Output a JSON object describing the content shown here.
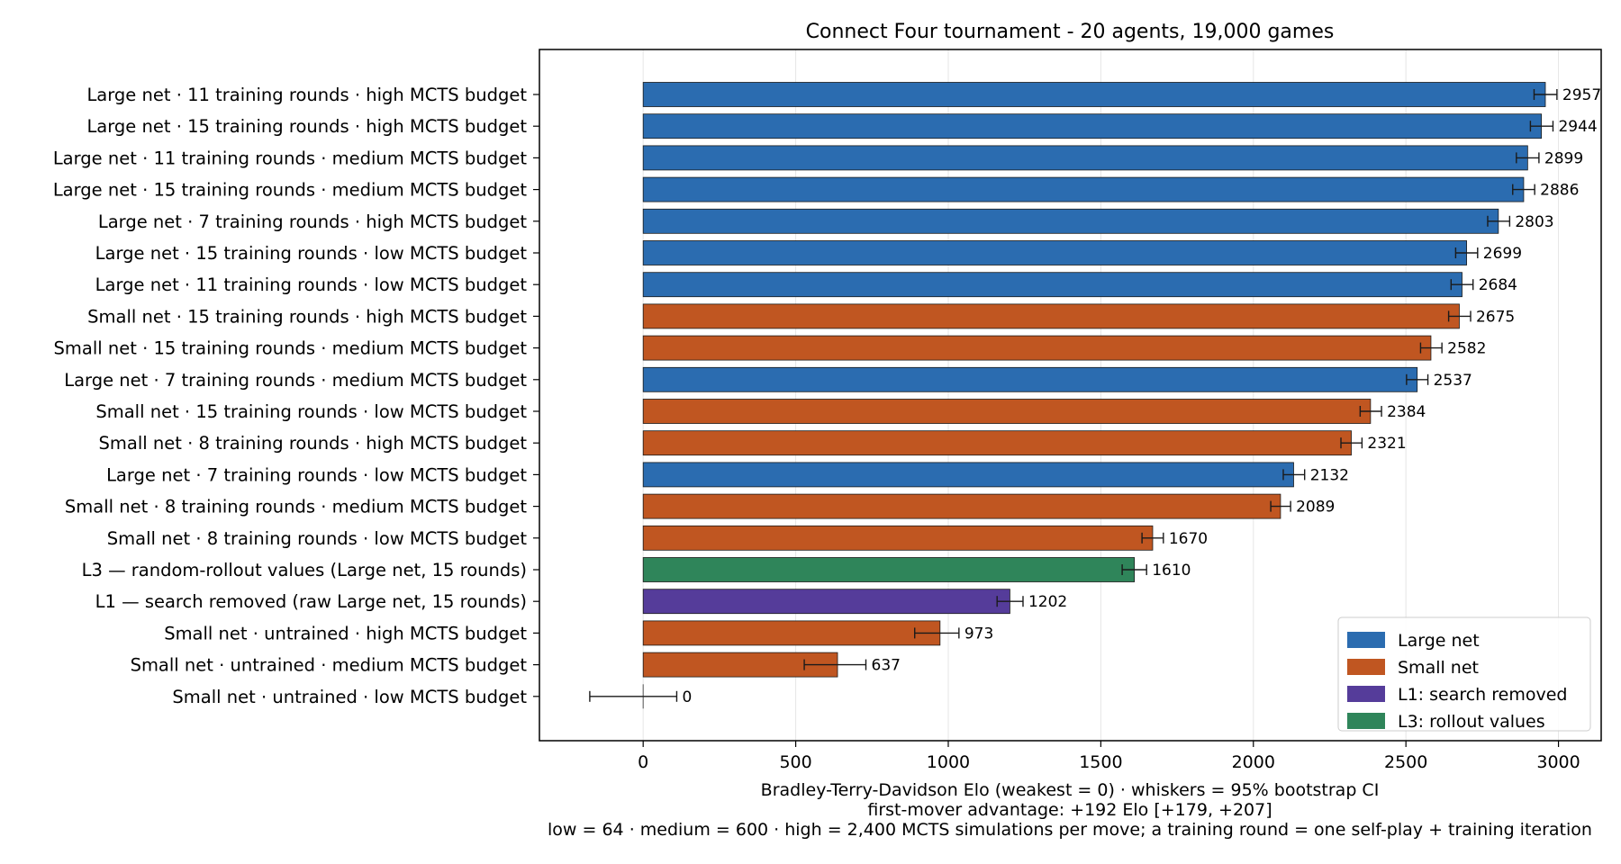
{
  "chart_data": {
    "type": "bar",
    "orientation": "horizontal",
    "title": "Connect Four tournament - 20 agents, 19,000 games",
    "xlabel_lines": [
      "Bradley-Terry-Davidson Elo (weakest = 0) · whiskers = 95% bootstrap CI",
      "first-mover advantage: +192 Elo [+179, +207]",
      "low = 64 · medium = 600 · high = 2,400 MCTS simulations per move; a training round = one self-play + training iteration"
    ],
    "xlim": [
      -340,
      3140
    ],
    "xticks": [
      0,
      500,
      1000,
      1500,
      2000,
      2500,
      3000
    ],
    "grid": "x",
    "legend_position": "lower-right",
    "legend": [
      {
        "label": "Large net",
        "color": "#2b6cb0"
      },
      {
        "label": "Small net",
        "color": "#c05621"
      },
      {
        "label": "L1: search removed",
        "color": "#553c9a"
      },
      {
        "label": "L3: rollout values",
        "color": "#2f855a"
      }
    ],
    "bars": [
      {
        "label": "Large net · 11 training rounds · high MCTS budget",
        "value": 2957,
        "ci": [
          2920,
          2995
        ],
        "group": 0
      },
      {
        "label": "Large net · 15 training rounds · high MCTS budget",
        "value": 2944,
        "ci": [
          2908,
          2982
        ],
        "group": 0
      },
      {
        "label": "Large net · 11 training rounds · medium MCTS budget",
        "value": 2899,
        "ci": [
          2862,
          2936
        ],
        "group": 0
      },
      {
        "label": "Large net · 15 training rounds · medium MCTS budget",
        "value": 2886,
        "ci": [
          2850,
          2922
        ],
        "group": 0
      },
      {
        "label": "Large net · 7 training rounds · high MCTS budget",
        "value": 2803,
        "ci": [
          2768,
          2840
        ],
        "group": 0
      },
      {
        "label": "Large net · 15 training rounds · low MCTS budget",
        "value": 2699,
        "ci": [
          2663,
          2735
        ],
        "group": 0
      },
      {
        "label": "Large net · 11 training rounds · low MCTS budget",
        "value": 2684,
        "ci": [
          2648,
          2720
        ],
        "group": 0
      },
      {
        "label": "Small net · 15 training rounds · high MCTS budget",
        "value": 2675,
        "ci": [
          2640,
          2712
        ],
        "group": 1
      },
      {
        "label": "Small net · 15 training rounds · medium MCTS budget",
        "value": 2582,
        "ci": [
          2548,
          2618
        ],
        "group": 1
      },
      {
        "label": "Large net · 7 training rounds · medium MCTS budget",
        "value": 2537,
        "ci": [
          2502,
          2572
        ],
        "group": 0
      },
      {
        "label": "Small net · 15 training rounds · low MCTS budget",
        "value": 2384,
        "ci": [
          2350,
          2420
        ],
        "group": 1
      },
      {
        "label": "Small net · 8 training rounds · high MCTS budget",
        "value": 2321,
        "ci": [
          2287,
          2356
        ],
        "group": 1
      },
      {
        "label": "Large net · 7 training rounds · low MCTS budget",
        "value": 2132,
        "ci": [
          2098,
          2168
        ],
        "group": 0
      },
      {
        "label": "Small net · 8 training rounds · medium MCTS budget",
        "value": 2089,
        "ci": [
          2057,
          2122
        ],
        "group": 1
      },
      {
        "label": "Small net · 8 training rounds · low MCTS budget",
        "value": 1670,
        "ci": [
          1635,
          1705
        ],
        "group": 1
      },
      {
        "label": "L3 — random-rollout values (Large net, 15 rounds)",
        "value": 1610,
        "ci": [
          1570,
          1650
        ],
        "group": 3
      },
      {
        "label": "L1 — search removed (raw Large net, 15 rounds)",
        "value": 1202,
        "ci": [
          1160,
          1245
        ],
        "group": 2
      },
      {
        "label": "Small net · untrained · high MCTS budget",
        "value": 973,
        "ci": [
          890,
          1035
        ],
        "group": 1
      },
      {
        "label": "Small net · untrained · medium MCTS budget",
        "value": 637,
        "ci": [
          528,
          730
        ],
        "group": 1
      },
      {
        "label": "Small net · untrained · low MCTS budget",
        "value": 0,
        "ci": [
          -175,
          110
        ],
        "group": 1
      }
    ]
  }
}
